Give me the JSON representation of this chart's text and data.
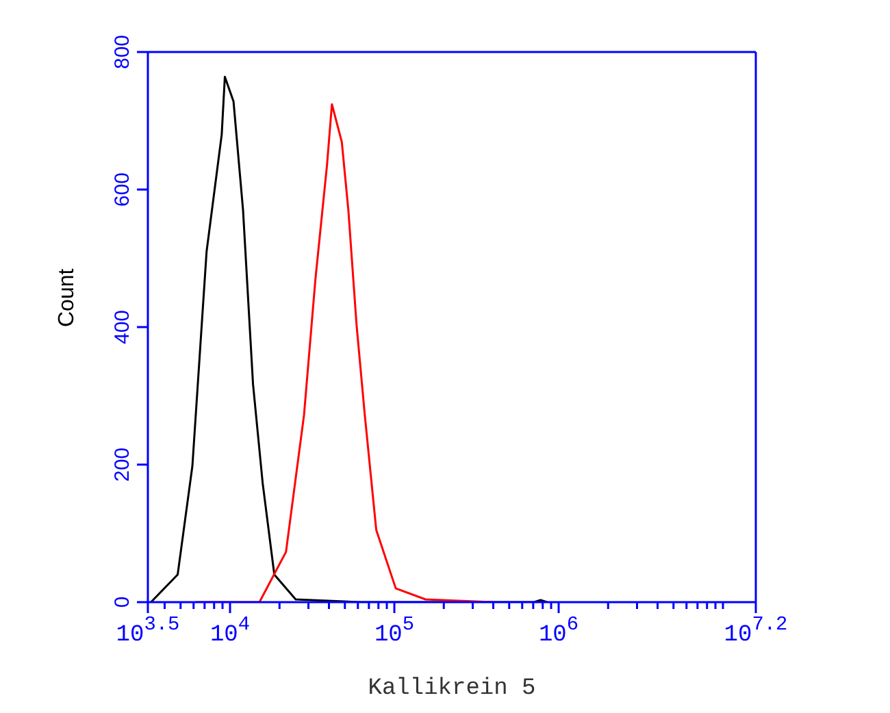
{
  "chart_data": {
    "type": "line",
    "xlabel": "Kallikrein 5",
    "ylabel": "Count",
    "log": "x",
    "xlim": [
      3162,
      15848932
    ],
    "ylim": [
      0,
      800
    ],
    "xticks": [
      {
        "value": 3162,
        "label": "10$^{3.5}$"
      },
      {
        "value": 4000,
        "label": null
      },
      {
        "value": 5000,
        "label": null
      },
      {
        "value": 6000,
        "label": null
      },
      {
        "value": 7000,
        "label": null
      },
      {
        "value": 8000,
        "label": null
      },
      {
        "value": 9000,
        "label": null
      },
      {
        "value": 10000,
        "label": "10$^{4}$"
      },
      {
        "value": 20000,
        "label": null
      },
      {
        "value": 30000,
        "label": null
      },
      {
        "value": 40000,
        "label": null
      },
      {
        "value": 50000,
        "label": null
      },
      {
        "value": 60000,
        "label": null
      },
      {
        "value": 70000,
        "label": null
      },
      {
        "value": 80000,
        "label": null
      },
      {
        "value": 90000,
        "label": null
      },
      {
        "value": 100000,
        "label": "10$^{5}$"
      },
      {
        "value": 200000,
        "label": null
      },
      {
        "value": 300000,
        "label": null
      },
      {
        "value": 400000,
        "label": null
      },
      {
        "value": 500000,
        "label": null
      },
      {
        "value": 600000,
        "label": null
      },
      {
        "value": 700000,
        "label": null
      },
      {
        "value": 800000,
        "label": null
      },
      {
        "value": 900000,
        "label": null
      },
      {
        "value": 1000000,
        "label": "10$^{6}$"
      },
      {
        "value": 2000000,
        "label": null
      },
      {
        "value": 3000000,
        "label": null
      },
      {
        "value": 4000000,
        "label": null
      },
      {
        "value": 5000000,
        "label": null
      },
      {
        "value": 6000000,
        "label": null
      },
      {
        "value": 7000000,
        "label": null
      },
      {
        "value": 8000000,
        "label": null
      },
      {
        "value": 9000000,
        "label": null
      },
      {
        "value": 10000000,
        "label": null
      },
      {
        "value": 15848932,
        "label": "10$^{7.2}$"
      }
    ],
    "yticks": [
      0,
      200,
      400,
      600,
      800
    ],
    "marker": "none",
    "series": [
      {
        "color": "#000000",
        "x": [
          3300,
          4800,
          5900,
          7200,
          8900,
          9300,
          10500,
          12000,
          13800,
          15800,
          18600,
          25100,
          63000,
          178000,
          708000,
          776000,
          851000
        ],
        "values": [
          0,
          40,
          198,
          510,
          680,
          764,
          728,
          570,
          317,
          173,
          40,
          4,
          0,
          0,
          0,
          3,
          0
        ]
      },
      {
        "color": "#ff0000",
        "x": [
          6200,
          15100,
          21900,
          28200,
          33100,
          38900,
          41700,
          47900,
          52500,
          58900,
          66100,
          77600,
          102000,
          155000,
          398000
        ],
        "values": [
          0,
          0,
          73,
          272,
          470,
          635,
          724,
          669,
          570,
          403,
          272,
          105,
          20,
          4,
          0
        ]
      }
    ]
  }
}
